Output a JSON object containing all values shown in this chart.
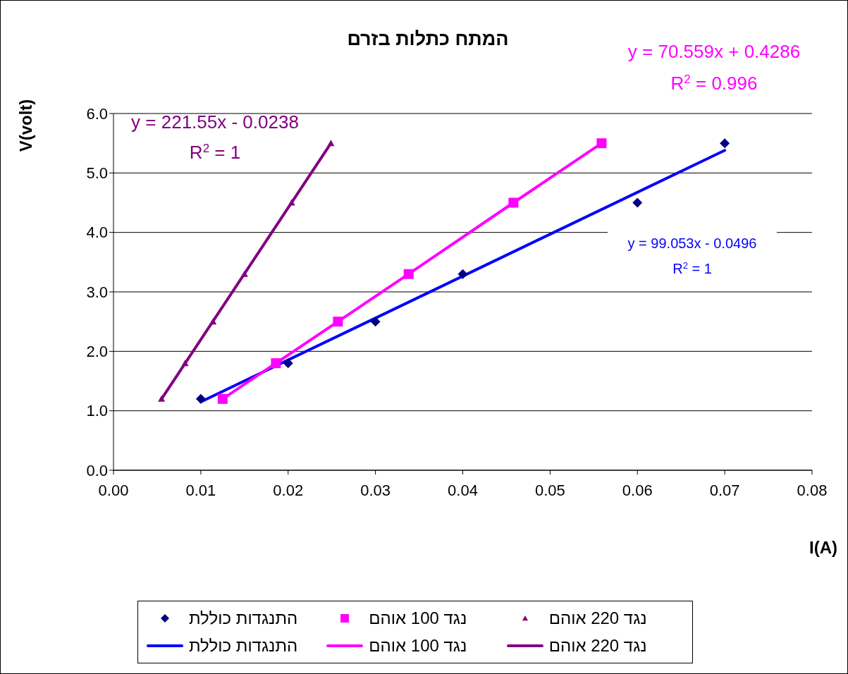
{
  "chart_data": {
    "type": "scatter",
    "title": "המתח כתלות בזרם",
    "xlabel": "I(A)",
    "ylabel": "V(volt)",
    "xlim": [
      0,
      0.08
    ],
    "xticks": [
      {
        "value": 0,
        "label": "0.00"
      },
      {
        "value": 0.01,
        "label": "0.01"
      },
      {
        "value": 0.02,
        "label": "0.02"
      },
      {
        "value": 0.03,
        "label": "0.03"
      },
      {
        "value": 0.04,
        "label": "0.04"
      },
      {
        "value": 0.05,
        "label": "0.05"
      },
      {
        "value": 0.06,
        "label": "0.06"
      },
      {
        "value": 0.07,
        "label": "0.07"
      },
      {
        "value": 0.08,
        "label": "0.08"
      }
    ],
    "ylim": [
      0,
      6
    ],
    "yticks": [
      {
        "value": 0,
        "label": "0.0"
      },
      {
        "value": 1,
        "label": "1.0"
      },
      {
        "value": 2,
        "label": "2.0"
      },
      {
        "value": 3,
        "label": "3.0"
      },
      {
        "value": 4,
        "label": "4.0"
      },
      {
        "value": 5,
        "label": "5.0"
      },
      {
        "value": 6,
        "label": "6.0"
      }
    ],
    "grid": "y",
    "legend": "bottom",
    "series": [
      {
        "name": "התנגדות כוללת",
        "marker": "diamond",
        "color": "#000080",
        "x": [
          0.01,
          0.02,
          0.03,
          0.04,
          0.06,
          0.07
        ],
        "values": [
          1.2,
          1.8,
          2.5,
          3.3,
          4.5,
          5.5
        ]
      },
      {
        "name": "נגד 100 אוהם",
        "marker": "square",
        "color": "#ff00ff",
        "x": [
          0.0125,
          0.0186,
          0.0257,
          0.0338,
          0.0458,
          0.0559
        ],
        "values": [
          1.2,
          1.8,
          2.5,
          3.3,
          4.5,
          5.5
        ]
      },
      {
        "name": "נגד 220 אוהם",
        "marker": "triangle",
        "color": "#800080",
        "x": [
          0.0055,
          0.0082,
          0.0114,
          0.015,
          0.0204,
          0.0249
        ],
        "values": [
          1.2,
          1.8,
          2.5,
          3.3,
          4.5,
          5.5
        ]
      },
      {
        "name": "התנגדות כוללת",
        "type": "line",
        "marker": "none",
        "color": "#0000ff",
        "x": [
          0.01,
          0.07
        ],
        "values": [
          1.15,
          5.38
        ]
      },
      {
        "name": "נגד 100 אוהם",
        "type": "line",
        "marker": "none",
        "color": "#ff00ff",
        "x": [
          0.0125,
          0.0186,
          0.0257,
          0.0338,
          0.0458,
          0.0559
        ],
        "values": [
          1.2,
          1.8,
          2.5,
          3.3,
          4.5,
          5.5
        ]
      },
      {
        "name": "נגד 220 אוהם",
        "type": "line",
        "marker": "none",
        "color": "#800080",
        "x": [
          0.0055,
          0.0249
        ],
        "values": [
          1.2,
          5.5
        ]
      }
    ],
    "annotations": [
      "y = 221.55x - 0.0238",
      "R$^{2}$ = 1",
      "y = 70.559x + 0.4286",
      "R$^{2}$ = 0.996",
      "y = 99.053x - 0.0496",
      "R$^{2}$ = 1"
    ]
  }
}
